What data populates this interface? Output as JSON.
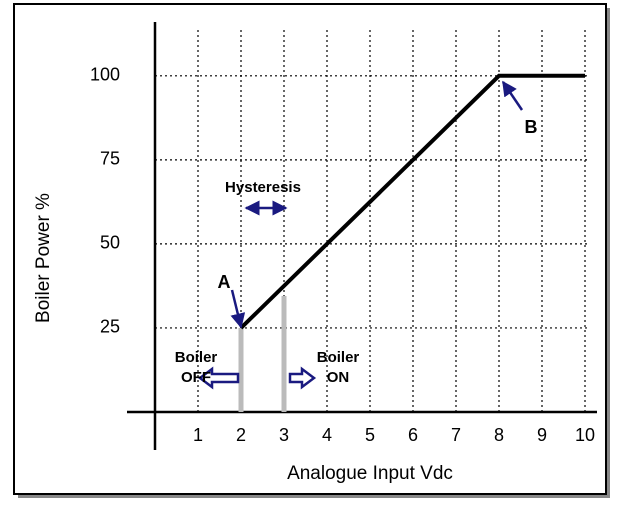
{
  "chart_data": {
    "type": "line",
    "x_label": "Analogue Input  Vdc",
    "y_label": "Boiler Power %",
    "x": [
      2,
      8,
      10
    ],
    "series": [
      {
        "color": "#000000",
        "values": [
          25,
          100,
          100
        ]
      }
    ],
    "xlim": [
      0,
      10
    ],
    "ylim": [
      0,
      116
    ],
    "xticks": [
      1,
      2,
      3,
      4,
      5,
      6,
      7,
      8,
      9,
      10
    ],
    "yticks": [
      25,
      50,
      75,
      100
    ],
    "grid": true,
    "annotations": [
      {
        "lines": [
          "A"
        ]
      },
      {
        "lines": [
          "B"
        ]
      },
      {
        "lines": [
          "Hysteresis"
        ]
      },
      {
        "lines": [
          "Boiler",
          "OFF"
        ]
      },
      {
        "lines": [
          "Boiler",
          "ON"
        ]
      }
    ]
  }
}
